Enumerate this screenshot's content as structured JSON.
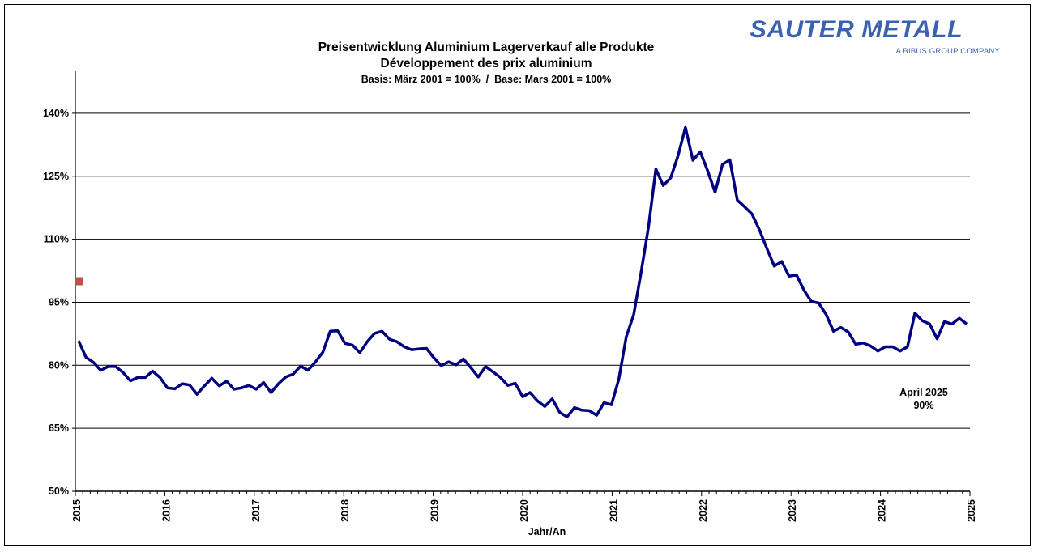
{
  "logo": {
    "name": "SAUTER METALL",
    "tagline": "A BIBUS GROUP COMPANY",
    "color": "#3b62b0"
  },
  "chart_data": {
    "type": "line",
    "title": "Preisentwicklung Aluminium Lagerverkauf alle Produkte",
    "subtitle": "Développement des prix aluminium",
    "subtitle2": "Basis: März 2001 = 100%  /  Base: Mars 2001 = 100%",
    "xlabel": "Jahr/An",
    "ylabel": "",
    "xlim": [
      2015,
      2025
    ],
    "ylim": [
      50,
      150
    ],
    "x_ticks": [
      "2015",
      "2016",
      "2017",
      "2018",
      "2019",
      "2020",
      "2021",
      "2022",
      "2023",
      "2024",
      "2025"
    ],
    "y_ticks": [
      "50%",
      "65%",
      "80%",
      "95%",
      "110%",
      "125%",
      "140%"
    ],
    "y_tick_values": [
      50,
      65,
      80,
      95,
      110,
      125,
      140
    ],
    "grid": "horizontal",
    "line_color": "#000080",
    "series": [
      {
        "values": [
          85.8,
          81.9,
          80.7,
          78.8,
          79.7,
          79.7,
          78.3,
          76.3,
          77.1,
          77.1,
          78.6,
          77.1,
          74.6,
          74.4,
          75.6,
          75.3,
          73.1,
          75.1,
          76.9,
          75.1,
          76.2,
          74.3,
          74.6,
          75.2,
          74.3,
          75.9,
          73.5,
          75.6,
          77.2,
          77.9,
          79.8,
          78.8,
          80.8,
          83.1,
          88.1,
          88.2,
          85.2,
          84.8,
          83.0,
          85.6,
          87.6,
          88.1,
          86.2,
          85.6,
          84.4,
          83.7,
          83.9,
          84.0,
          81.8,
          79.9,
          80.8,
          80.1,
          81.5,
          79.4,
          77.2,
          79.7,
          78.4,
          77.1,
          75.2,
          75.7,
          72.5,
          73.5,
          71.5,
          70.2,
          72.0,
          68.8,
          67.7,
          69.9,
          69.3,
          69.2,
          68.1,
          71.1,
          70.6,
          76.7,
          86.8,
          92.0,
          102.0,
          112.9,
          126.7,
          122.8,
          124.6,
          129.9,
          136.6,
          128.8,
          130.8,
          126.3,
          121.2,
          127.8,
          128.9,
          119.3,
          117.7,
          116.0,
          112.2,
          107.8,
          103.6,
          104.7,
          101.2,
          101.5,
          97.9,
          95.2,
          94.8,
          92.1,
          88.1,
          89.0,
          87.9,
          85.0,
          85.3,
          84.6,
          83.4,
          84.4,
          84.4,
          83.4,
          84.4,
          92.4,
          90.6,
          89.8,
          86.3,
          90.4,
          89.8,
          91.2,
          89.8
        ]
      }
    ],
    "marker": {
      "x": 2015,
      "y": 100,
      "color": "#c0504d"
    },
    "annotation": {
      "line1": "April 2025",
      "line2": "90%"
    }
  }
}
